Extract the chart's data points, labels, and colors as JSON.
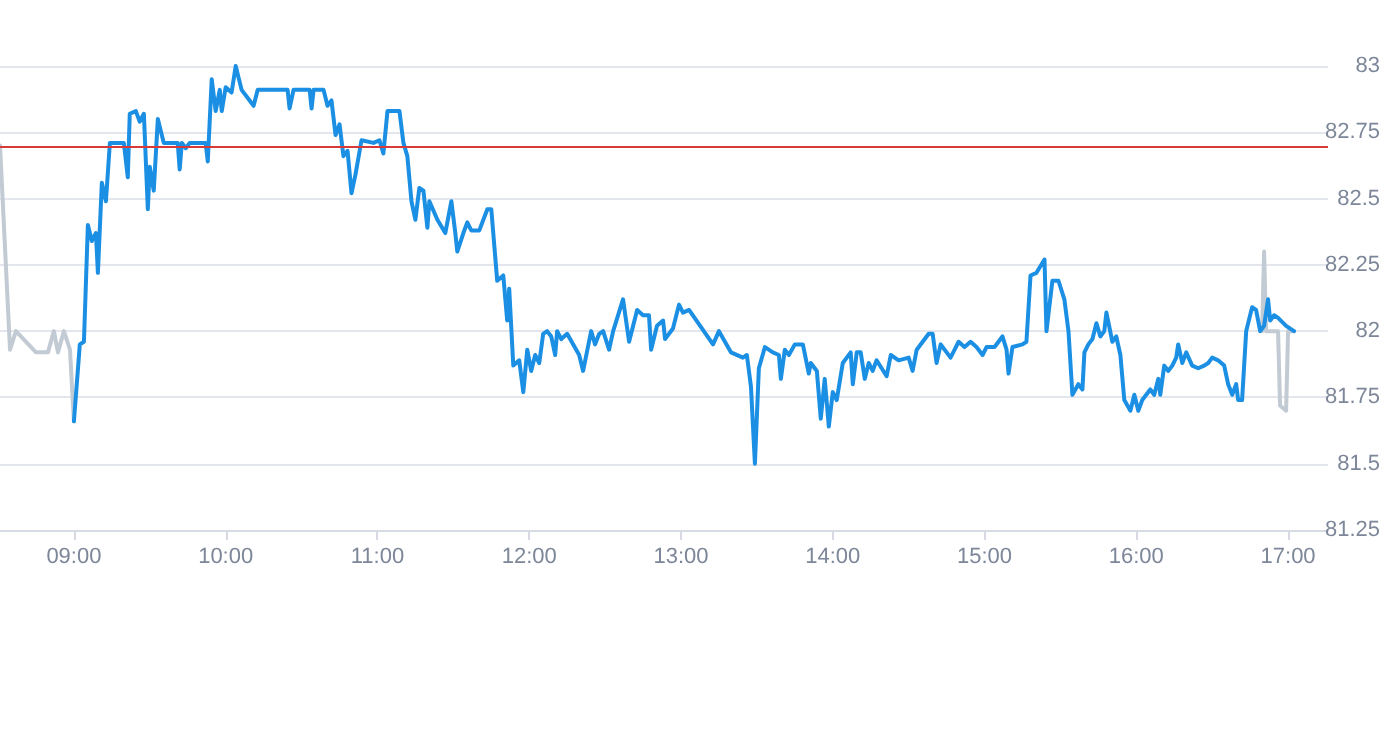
{
  "chart_data": {
    "type": "line",
    "xlim": [
      8.513,
      17.263
    ],
    "ylim": [
      81.25,
      83
    ],
    "xticks": [
      {
        "value": 9,
        "label": "09:00"
      },
      {
        "value": 10,
        "label": "10:00"
      },
      {
        "value": 11,
        "label": "11:00"
      },
      {
        "value": 12,
        "label": "12:00"
      },
      {
        "value": 13,
        "label": "13:00"
      },
      {
        "value": 14,
        "label": "14:00"
      },
      {
        "value": 15,
        "label": "15:00"
      },
      {
        "value": 16,
        "label": "16:00"
      },
      {
        "value": 17,
        "label": "17:00"
      }
    ],
    "yticks": [
      81.25,
      81.5,
      81.75,
      82,
      82.25,
      82.5,
      82.75,
      83
    ],
    "grid": "y",
    "marker": "none",
    "line_style": "solid",
    "ref_lines": [
      {
        "axis": "y",
        "value": 82.7,
        "color": "#d83a3a"
      }
    ],
    "series": [
      {
        "color": "#c2cad3",
        "x": [
          8.513,
          8.579,
          8.618,
          8.75,
          8.829,
          8.868,
          8.895,
          8.934,
          8.974,
          9.0,
          12,
          16.829,
          16.842,
          16.855,
          16.934,
          16.947,
          16.987,
          17.0,
          17.039
        ],
        "values": [
          82.7,
          81.93,
          82.0,
          81.92,
          81.92,
          82.0,
          81.92,
          82.0,
          81.93,
          81.66,
          null,
          82.0,
          82.3,
          82.0,
          82.0,
          81.72,
          81.7,
          82.0,
          82.0
        ]
      },
      {
        "color": "#1a8fe3",
        "x": [
          9.0,
          9.039,
          9.066,
          9.092,
          9.118,
          9.145,
          9.158,
          9.184,
          9.211,
          9.237,
          9.329,
          9.355,
          9.368,
          9.408,
          9.434,
          9.461,
          9.487,
          9.5,
          9.526,
          9.553,
          9.592,
          9.684,
          9.697,
          9.711,
          9.737,
          9.763,
          9.868,
          9.882,
          9.908,
          9.934,
          9.961,
          9.974,
          10.0,
          10.039,
          10.066,
          10.079,
          10.105,
          10.184,
          10.211,
          10.408,
          10.421,
          10.447,
          10.553,
          10.566,
          10.579,
          10.645,
          10.671,
          10.697,
          10.724,
          10.75,
          10.776,
          10.803,
          10.829,
          10.855,
          10.895,
          10.974,
          11.013,
          11.039,
          11.066,
          11.145,
          11.171,
          11.197,
          11.224,
          11.25,
          11.276,
          11.303,
          11.329,
          11.342,
          11.395,
          11.447,
          11.487,
          11.513,
          11.526,
          11.566,
          11.592,
          11.618,
          11.671,
          11.724,
          11.75,
          11.789,
          11.829,
          11.855,
          11.868,
          11.895,
          11.934,
          11.961,
          11.987,
          12.013,
          12.039,
          12.066,
          12.092,
          12.118,
          12.145,
          12.171,
          12.184,
          12.211,
          12.25,
          12.329,
          12.355,
          12.408,
          12.434,
          12.461,
          12.487,
          12.526,
          12.553,
          12.618,
          12.658,
          12.711,
          12.75,
          12.789,
          12.803,
          12.842,
          12.882,
          12.895,
          12.947,
          12.987,
          13.013,
          13.053,
          13.211,
          13.25,
          13.329,
          13.408,
          13.434,
          13.461,
          13.487,
          13.513,
          13.553,
          13.605,
          13.645,
          13.658,
          13.684,
          13.711,
          13.75,
          13.803,
          13.842,
          13.855,
          13.895,
          13.921,
          13.947,
          13.974,
          14.0,
          14.026,
          14.066,
          14.118,
          14.132,
          14.158,
          14.184,
          14.211,
          14.237,
          14.263,
          14.289,
          14.355,
          14.382,
          14.434,
          14.5,
          14.526,
          14.553,
          14.632,
          14.658,
          14.684,
          14.711,
          14.776,
          14.803,
          14.829,
          14.868,
          14.908,
          14.947,
          14.987,
          15.013,
          15.066,
          15.118,
          15.145,
          15.158,
          15.184,
          15.25,
          15.276,
          15.303,
          15.342,
          15.395,
          15.408,
          15.447,
          15.487,
          15.526,
          15.553,
          15.579,
          15.618,
          15.645,
          15.658,
          15.684,
          15.711,
          15.737,
          15.763,
          15.789,
          15.803,
          15.842,
          15.868,
          15.895,
          15.921,
          15.961,
          15.987,
          16.013,
          16.039,
          16.092,
          16.118,
          16.145,
          16.158,
          16.184,
          16.211,
          16.237,
          16.263,
          16.276,
          16.303,
          16.329,
          16.368,
          16.408,
          16.447,
          16.474,
          16.5,
          16.539,
          16.579,
          16.605,
          16.632,
          16.658,
          16.671,
          16.697,
          16.724,
          16.763,
          16.789,
          16.816,
          16.842,
          16.868,
          16.882,
          16.908,
          16.934,
          16.987,
          17.039
        ],
        "values": [
          81.66,
          81.95,
          81.96,
          82.4,
          82.34,
          82.37,
          82.22,
          82.56,
          82.49,
          82.71,
          82.71,
          82.58,
          82.82,
          82.83,
          82.79,
          82.82,
          82.46,
          82.62,
          82.53,
          82.8,
          82.71,
          82.71,
          82.61,
          82.71,
          82.69,
          82.71,
          82.71,
          82.64,
          82.95,
          82.83,
          82.91,
          82.83,
          82.92,
          82.9,
          83.0,
          82.97,
          82.91,
          82.85,
          82.91,
          82.91,
          82.84,
          82.91,
          82.91,
          82.84,
          82.91,
          82.91,
          82.85,
          82.87,
          82.74,
          82.78,
          82.66,
          82.68,
          82.52,
          82.59,
          82.72,
          82.71,
          82.72,
          82.67,
          82.83,
          82.83,
          82.71,
          82.66,
          82.49,
          82.42,
          82.54,
          82.53,
          82.39,
          82.49,
          82.42,
          82.37,
          82.49,
          82.37,
          82.3,
          82.37,
          82.41,
          82.38,
          82.38,
          82.46,
          82.46,
          82.19,
          82.21,
          82.04,
          82.16,
          81.87,
          81.89,
          81.77,
          81.93,
          81.85,
          81.91,
          81.88,
          81.99,
          82.0,
          81.98,
          81.91,
          82.0,
          81.97,
          81.99,
          81.91,
          81.85,
          82.0,
          81.95,
          81.99,
          82.0,
          81.93,
          82.0,
          82.12,
          81.96,
          82.08,
          82.06,
          82.06,
          81.93,
          82.02,
          82.04,
          81.97,
          82.01,
          82.1,
          82.07,
          82.08,
          81.95,
          82.0,
          81.92,
          81.9,
          81.91,
          81.79,
          81.5,
          81.86,
          81.94,
          81.92,
          81.91,
          81.82,
          81.93,
          81.91,
          81.95,
          81.95,
          81.84,
          81.88,
          81.85,
          81.67,
          81.82,
          81.64,
          81.77,
          81.74,
          81.88,
          81.92,
          81.8,
          81.92,
          81.92,
          81.82,
          81.88,
          81.85,
          81.89,
          81.83,
          81.91,
          81.89,
          81.9,
          81.85,
          81.93,
          81.99,
          81.99,
          81.88,
          81.95,
          81.9,
          81.93,
          81.96,
          81.94,
          81.96,
          81.94,
          81.91,
          81.94,
          81.94,
          81.98,
          81.93,
          81.84,
          81.94,
          81.95,
          81.96,
          82.21,
          82.22,
          82.27,
          82.0,
          82.19,
          82.19,
          82.12,
          82.0,
          81.76,
          81.8,
          81.78,
          81.92,
          81.95,
          81.97,
          82.03,
          81.98,
          82.0,
          82.07,
          81.96,
          81.98,
          81.91,
          81.74,
          81.7,
          81.76,
          81.7,
          81.74,
          81.78,
          81.76,
          81.82,
          81.76,
          81.87,
          81.85,
          81.87,
          81.9,
          81.95,
          81.88,
          81.92,
          81.87,
          81.86,
          81.87,
          81.88,
          81.9,
          81.89,
          81.87,
          81.8,
          81.76,
          81.8,
          81.74,
          81.74,
          82.0,
          82.09,
          82.08,
          82.0,
          82.02,
          82.12,
          82.04,
          82.06,
          82.05,
          82.02,
          82.0
        ]
      }
    ]
  }
}
